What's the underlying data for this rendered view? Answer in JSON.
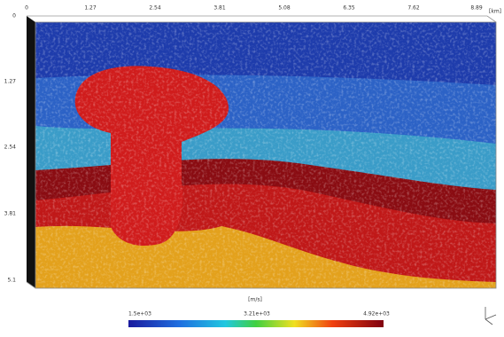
{
  "top_axis": {
    "ticks": [
      "0",
      "1.27",
      "2.54",
      "3.81",
      "5.08",
      "6.35",
      "7.62",
      "8.89"
    ],
    "unit": "[km]"
  },
  "left_axis": {
    "ticks": [
      "0",
      "1.27",
      "2.54",
      "3.81",
      "5.1"
    ]
  },
  "colorbar": {
    "unit": "[m/s]",
    "labels": [
      "1.5e+03",
      "3.21e+03",
      "4.92e+03"
    ]
  }
}
